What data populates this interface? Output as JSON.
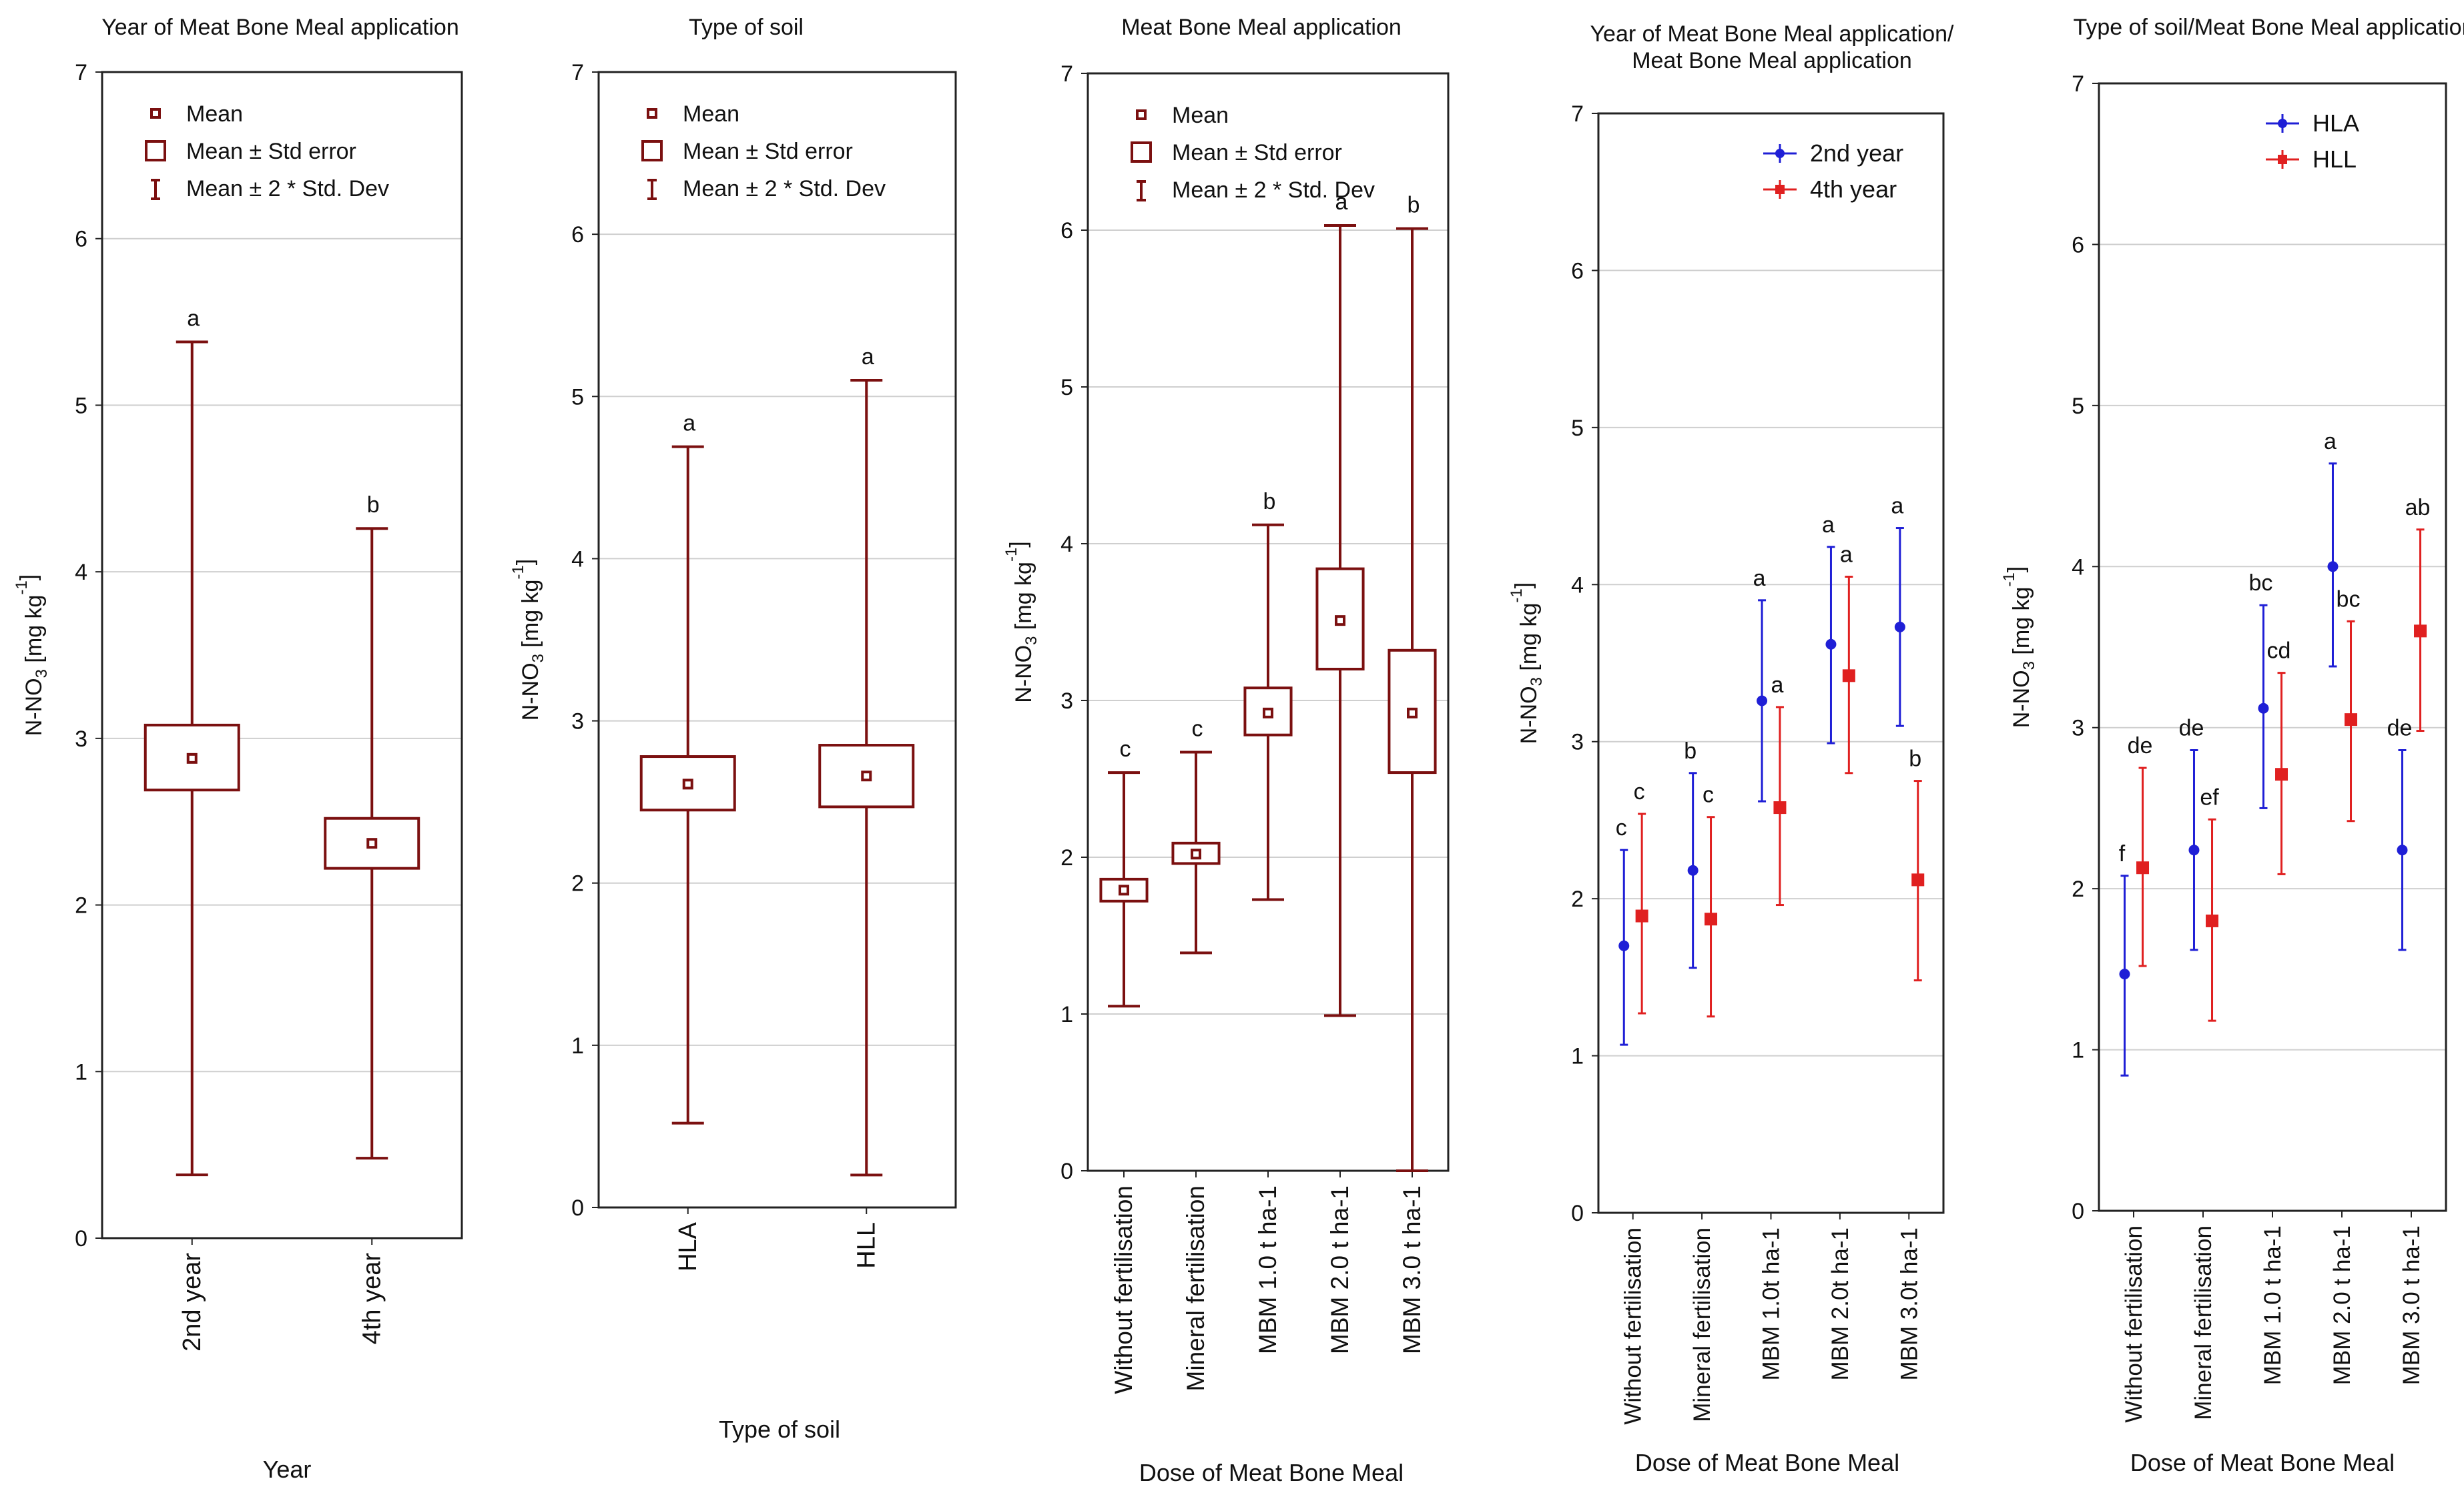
{
  "colors": {
    "maroon": "#7b1010",
    "blue": "#1f1fd6",
    "red": "#e02020",
    "grid": "#cfcfcf",
    "frame": "#222222"
  },
  "legend_labels": {
    "mean": "Mean",
    "se": "Mean ± Std error",
    "sd": "Mean ± 2 * Std. Dev"
  },
  "chart_data": [
    {
      "id": "p1",
      "type": "box",
      "title": "Year of Meat Bone Meal application",
      "xlabel": "Year",
      "ylabel": "N-NO3 [mg kg-1]",
      "ylim": [
        0,
        7
      ],
      "yticks": [
        "0",
        "1",
        "2",
        "3",
        "4",
        "5",
        "6",
        "7"
      ],
      "categories": [
        "2nd year",
        "4th year"
      ],
      "mean": [
        2.88,
        2.37
      ],
      "se_low": [
        2.69,
        2.22
      ],
      "se_high": [
        3.08,
        2.52
      ],
      "sd_low": [
        0.38,
        0.48
      ],
      "sd_high": [
        5.38,
        4.26
      ],
      "letters": [
        "a",
        "b"
      ]
    },
    {
      "id": "p2",
      "type": "box",
      "title": "Type of soil",
      "xlabel": "Type of soil",
      "ylabel": "N-NO3 [mg kg-1]",
      "ylim": [
        0,
        7
      ],
      "yticks": [
        "0",
        "1",
        "2",
        "3",
        "4",
        "5",
        "6",
        "7"
      ],
      "categories": [
        "HLA",
        "HLL"
      ],
      "mean": [
        2.61,
        2.66
      ],
      "se_low": [
        2.45,
        2.47
      ],
      "se_high": [
        2.78,
        2.85
      ],
      "sd_low": [
        0.52,
        0.2
      ],
      "sd_high": [
        4.69,
        5.1
      ],
      "letters": [
        "a",
        "a"
      ]
    },
    {
      "id": "p3",
      "type": "box",
      "title": "Meat Bone Meal application",
      "xlabel": "Dose of Meat Bone Meal",
      "ylabel": "N-NO3 [mg kg-1]",
      "ylim": [
        0,
        7
      ],
      "yticks": [
        "0",
        "1",
        "2",
        "3",
        "4",
        "5",
        "6",
        "7"
      ],
      "categories": [
        "Without fertilisation",
        "Mineral fertilisation",
        "MBM 1.0 t ha-1",
        "MBM 2.0 t ha-1",
        "MBM 3.0 t ha-1"
      ],
      "mean": [
        1.79,
        2.02,
        2.92,
        3.51,
        2.92
      ],
      "se_low": [
        1.72,
        1.96,
        2.78,
        3.2,
        2.54
      ],
      "se_high": [
        1.86,
        2.09,
        3.08,
        3.84,
        3.32
      ],
      "sd_low": [
        1.05,
        1.39,
        1.73,
        0.99,
        0.0
      ],
      "sd_high": [
        2.54,
        2.67,
        4.12,
        6.03,
        6.01
      ],
      "letters": [
        "c",
        "c",
        "b",
        "a",
        "b"
      ]
    },
    {
      "id": "p4",
      "type": "errorbar",
      "title": "Year of Meat Bone Meal application/Meat Bone Meal application",
      "xlabel": "Dose of Meat Bone Meal",
      "ylabel": "N-NO3 [mg kg-1]",
      "ylim": [
        0,
        7
      ],
      "yticks": [
        "0",
        "1",
        "2",
        "3",
        "4",
        "5",
        "6",
        "7"
      ],
      "categories": [
        "Without fertilisation",
        "Mineral fertilisation",
        "MBM 1.0t ha-1",
        "MBM 2.0t ha-1",
        "MBM 3.0t ha-1"
      ],
      "series": [
        {
          "name": "2nd year",
          "color": "#1f1fd6",
          "marker": "dot",
          "values": [
            1.7,
            2.18,
            3.26,
            3.62,
            3.73
          ],
          "low": [
            1.07,
            1.56,
            2.62,
            2.99,
            3.1
          ],
          "high": [
            2.31,
            2.8,
            3.9,
            4.24,
            4.36
          ],
          "letters": [
            "c",
            "b",
            "a",
            "a",
            "a"
          ]
        },
        {
          "name": "4th year",
          "color": "#e02020",
          "marker": "square",
          "values": [
            1.89,
            1.87,
            2.58,
            3.42,
            2.12
          ],
          "low": [
            1.27,
            1.25,
            1.96,
            2.8,
            1.48
          ],
          "high": [
            2.54,
            2.52,
            3.22,
            4.05,
            2.75
          ],
          "letters": [
            "c",
            "c",
            "a",
            "a",
            "b"
          ]
        }
      ]
    },
    {
      "id": "p5",
      "type": "errorbar",
      "title": "Type of soil/Meat Bone Meal application",
      "xlabel": "Dose of Meat Bone Meal",
      "ylabel": "N-NO3 [mg kg-1]",
      "ylim": [
        0,
        7
      ],
      "yticks": [
        "0",
        "1",
        "2",
        "3",
        "4",
        "5",
        "6",
        "7"
      ],
      "categories": [
        "Without fertilisation",
        "Mineral fertilisation",
        "MBM 1.0 t ha-1",
        "MBM 2.0 t ha-1",
        "MBM 3.0 t ha-1"
      ],
      "series": [
        {
          "name": "HLA",
          "color": "#1f1fd6",
          "marker": "dot",
          "values": [
            1.47,
            2.24,
            3.12,
            4.0,
            2.24
          ],
          "low": [
            0.84,
            1.62,
            2.5,
            3.38,
            1.62
          ],
          "high": [
            2.08,
            2.86,
            3.76,
            4.64,
            2.86
          ],
          "letters": [
            "f",
            "de",
            "bc",
            "a",
            "de"
          ]
        },
        {
          "name": "HLL",
          "color": "#e02020",
          "marker": "square",
          "values": [
            2.13,
            1.8,
            2.71,
            3.05,
            3.6
          ],
          "low": [
            1.52,
            1.18,
            2.09,
            2.42,
            2.98
          ],
          "high": [
            2.75,
            2.43,
            3.34,
            3.66,
            4.23
          ],
          "letters": [
            "de",
            "ef",
            "cd",
            "bc",
            "ab"
          ]
        }
      ]
    }
  ]
}
